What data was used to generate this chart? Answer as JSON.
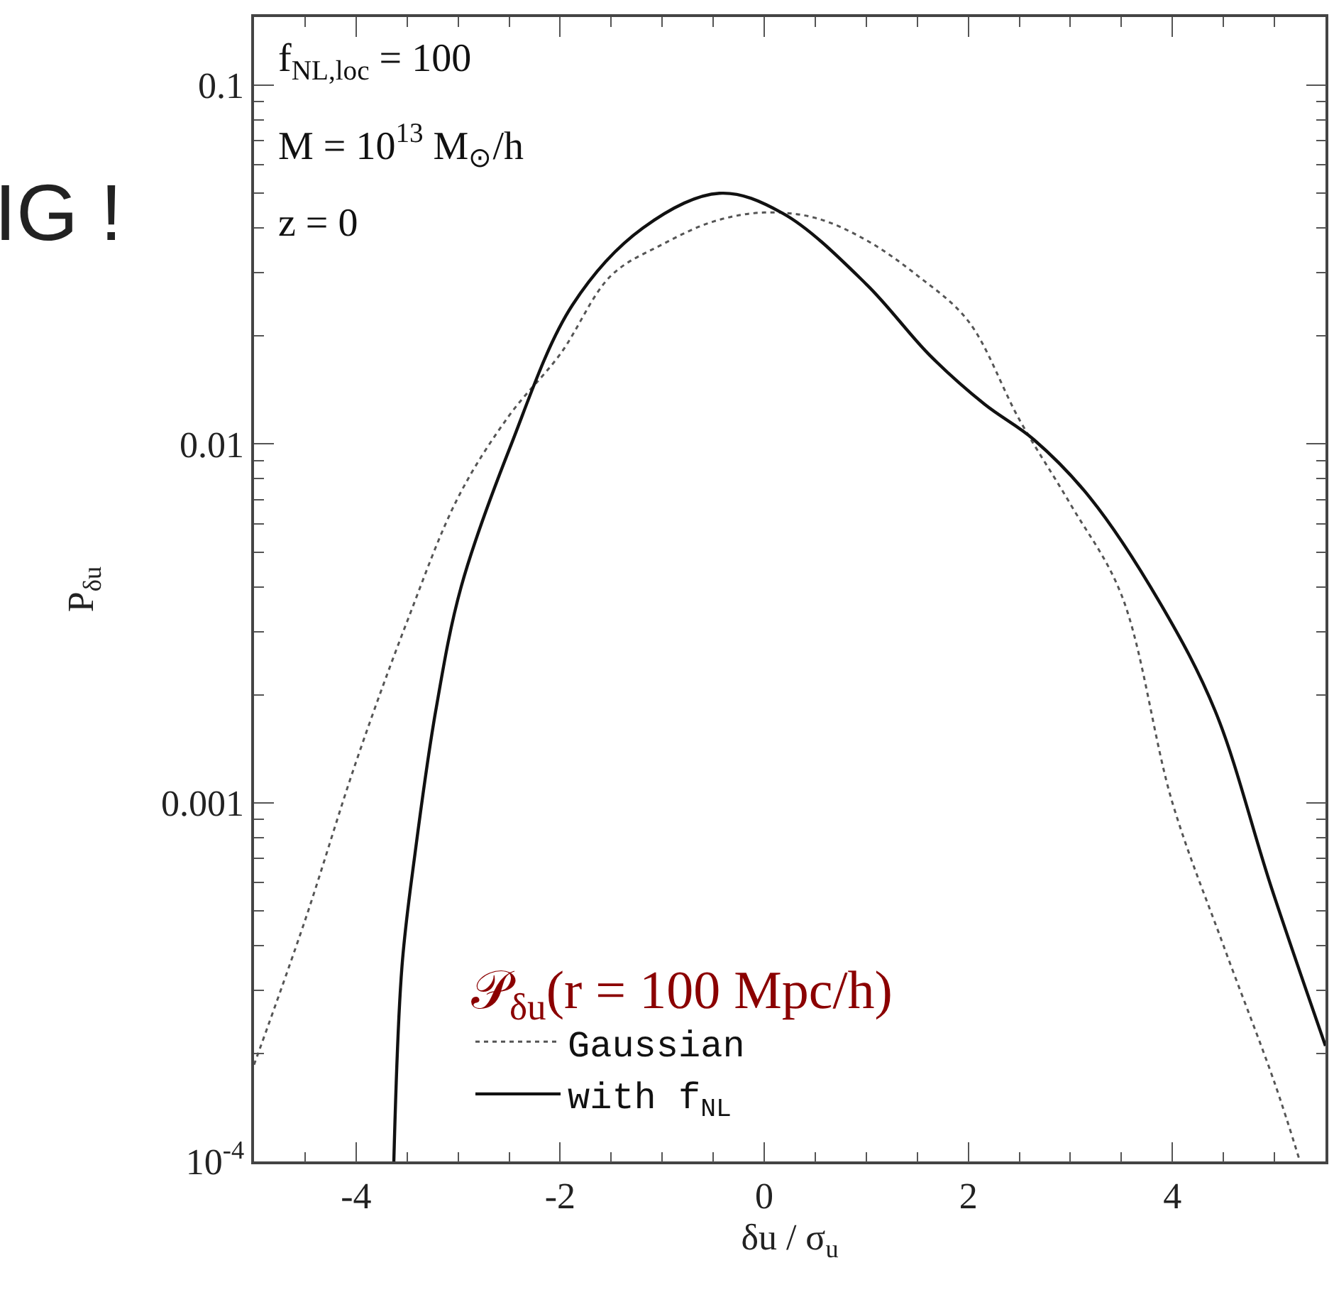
{
  "chart_data": {
    "type": "line",
    "xlabel": "δu / σ$_{u}$",
    "ylabel": "P$_{δu}$",
    "legend_title": "𝒫$_{δu}$(r = 100 Mpc/h)",
    "legend": "bottom",
    "log": "y",
    "xlim": [
      -5,
      5.5
    ],
    "xticks": [
      -4,
      -2,
      0,
      2,
      4
    ],
    "ylim": [
      0.0001,
      0.155
    ],
    "yticks": [
      {
        "value": 0.0001,
        "label": "10$^{-4}$"
      },
      0.001,
      0.01,
      0.1
    ],
    "annotations": [
      "f$_{NL,loc}$ = 100",
      "M = 10$^{13}$ M$_{⊙}$/h",
      "z = 0",
      "IG !"
    ],
    "series": [
      {
        "name": "Gaussian",
        "color": "#555555",
        "line_style": "dotted",
        "x": [
          -5,
          -4.5,
          -4,
          -3.5,
          -3,
          -2.5,
          -2,
          -1.5,
          -1,
          -0.5,
          0,
          0.5,
          1,
          1.5,
          2,
          2.5,
          3,
          3.5,
          4,
          4.5,
          5,
          5.25
        ],
        "values": [
          0.000186,
          0.00047,
          0.0013,
          0.0032,
          0.0071,
          0.012,
          0.0178,
          0.0295,
          0.036,
          0.0417,
          0.0442,
          0.0427,
          0.037,
          0.0295,
          0.022,
          0.0117,
          0.0068,
          0.0038,
          0.001,
          0.0004,
          0.000166,
          0.0001
        ]
      },
      {
        "name": "with f$_{NL}$",
        "color": "#111111",
        "line_style": "solid",
        "x": [
          -3.63,
          -3.55,
          -3.42,
          -3.22,
          -2.97,
          -2.49,
          -1.88,
          -1.19,
          -0.44,
          0.18,
          1.0,
          1.62,
          2.16,
          2.64,
          3.19,
          3.88,
          4.42,
          4.97,
          5.5
        ],
        "values": [
          0.0001,
          0.00035,
          0.00073,
          0.0018,
          0.004,
          0.0098,
          0.0244,
          0.04,
          0.05,
          0.044,
          0.0279,
          0.0177,
          0.0129,
          0.0103,
          0.0071,
          0.0036,
          0.0018,
          0.00058,
          0.00021
        ]
      }
    ]
  }
}
